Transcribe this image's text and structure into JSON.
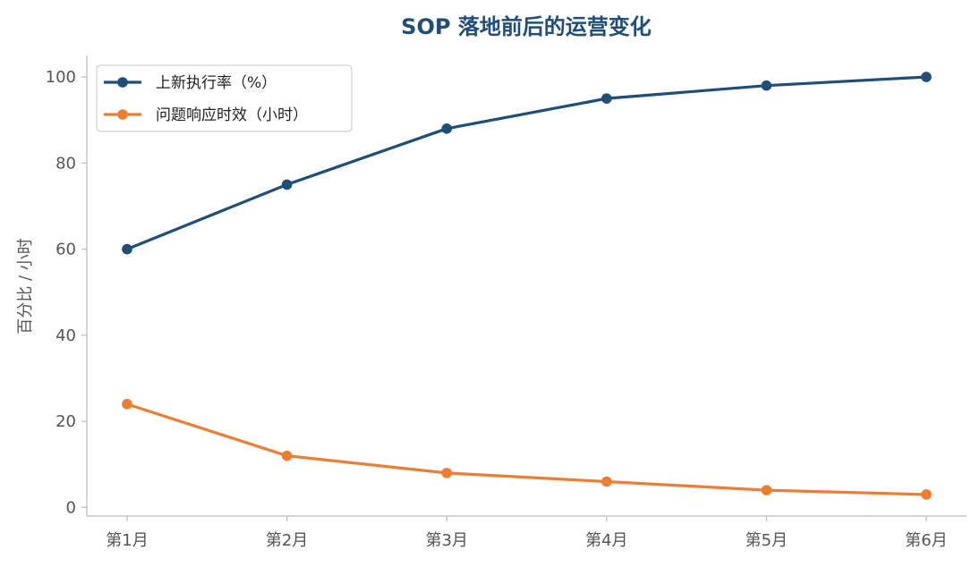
{
  "chart_data": {
    "type": "line",
    "title": "SOP 落地前后的运营变化",
    "xlabel": "",
    "ylabel": "百分比 / 小时",
    "categories": [
      "第1月",
      "第2月",
      "第3月",
      "第4月",
      "第5月",
      "第6月"
    ],
    "ylim": [
      -2,
      105
    ],
    "yticks": [
      0,
      20,
      40,
      60,
      80,
      100
    ],
    "ytick_labels": [
      "0",
      "20",
      "40",
      "60",
      "80",
      "100"
    ],
    "grid": false,
    "legend_position": "top-left",
    "series": [
      {
        "name": "上新执行率（%）",
        "values": [
          60,
          75,
          88,
          95,
          98,
          100
        ],
        "color": "#1f4e79",
        "marker": "circle"
      },
      {
        "name": "问题响应时效（小时）",
        "values": [
          24,
          12,
          8,
          6,
          4,
          3
        ],
        "color": "#ed7d31",
        "marker": "circle"
      }
    ]
  },
  "style": {
    "title_color": "#1f4e79",
    "axis_color": "#bbbbbb",
    "tick_label_color": "#555555"
  }
}
